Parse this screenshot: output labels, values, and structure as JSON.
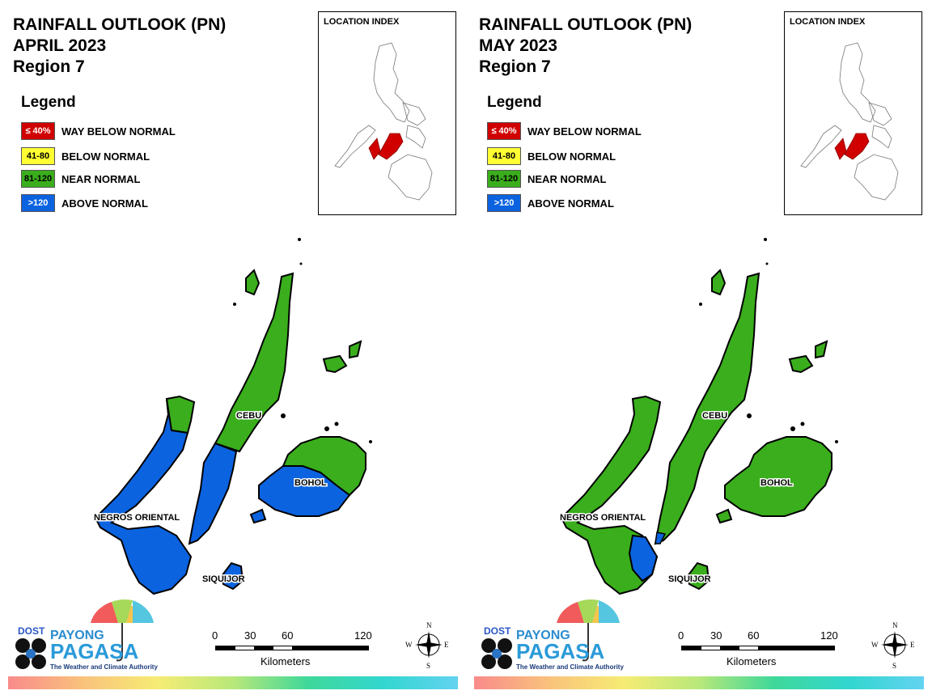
{
  "panels": [
    {
      "title_line1": "RAINFALL OUTLOOK (PN)",
      "title_line2": "APRIL 2023",
      "title_line3": "Region 7",
      "legend_title": "Legend",
      "legend": [
        {
          "range": "≤ 40%",
          "label": "WAY BELOW NORMAL",
          "color": "#d10000",
          "text_color": "#ffffff"
        },
        {
          "range": "41-80",
          "label": "BELOW NORMAL",
          "color": "#ffff33",
          "text_color": "#000000"
        },
        {
          "range": "81-120",
          "label": "NEAR NORMAL",
          "color": "#3aae1c",
          "text_color": "#000000"
        },
        {
          "range": ">120",
          "label": "ABOVE NORMAL",
          "color": "#0b63e0",
          "text_color": "#ffffff"
        }
      ],
      "location_index_label": "LOCATION INDEX",
      "places": {
        "cebu": "CEBU",
        "bohol": "BOHOL",
        "negros": "NEGROS ORIENTAL",
        "siquijor": "SIQUIJOR"
      },
      "scale": {
        "ticks": [
          "0",
          "30",
          "60",
          "120"
        ],
        "unit": "Kilometers"
      },
      "compass": {
        "n": "N",
        "s": "S",
        "e": "E",
        "w": "W"
      },
      "logo": {
        "dost": "DOST",
        "payong": "PAYONG",
        "pagasa": "PAGASA",
        "tagline": "The Weather and Climate Authority"
      }
    },
    {
      "title_line1": "RAINFALL OUTLOOK (PN)",
      "title_line2": "MAY 2023",
      "title_line3": "Region 7",
      "legend_title": "Legend",
      "legend": [
        {
          "range": "≤ 40%",
          "label": "WAY BELOW NORMAL",
          "color": "#d10000",
          "text_color": "#ffffff"
        },
        {
          "range": "41-80",
          "label": "BELOW NORMAL",
          "color": "#ffff33",
          "text_color": "#000000"
        },
        {
          "range": "81-120",
          "label": "NEAR NORMAL",
          "color": "#3aae1c",
          "text_color": "#000000"
        },
        {
          "range": ">120",
          "label": "ABOVE NORMAL",
          "color": "#0b63e0",
          "text_color": "#ffffff"
        }
      ],
      "location_index_label": "LOCATION INDEX",
      "places": {
        "cebu": "CEBU",
        "bohol": "BOHOL",
        "negros": "NEGROS ORIENTAL",
        "siquijor": "SIQUIJOR"
      },
      "scale": {
        "ticks": [
          "0",
          "30",
          "60",
          "120"
        ],
        "unit": "Kilometers"
      },
      "compass": {
        "n": "N",
        "s": "S",
        "e": "E",
        "w": "W"
      },
      "logo": {
        "dost": "DOST",
        "payong": "PAYONG",
        "pagasa": "PAGASA",
        "tagline": "The Weather and Climate Authority"
      }
    }
  ],
  "colors": {
    "near_normal": "#3aae1c",
    "above_normal": "#0b63e0",
    "way_below_normal": "#d10000"
  }
}
